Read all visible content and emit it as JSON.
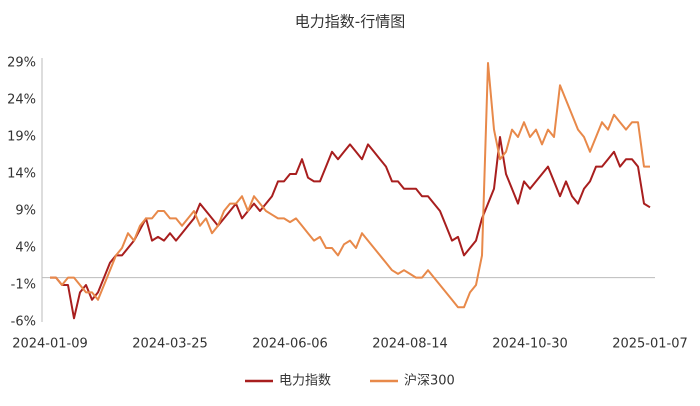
{
  "chart_data": {
    "type": "line",
    "title": "电力指数-行情图",
    "categories": [
      "2024-01-09",
      null,
      null,
      null,
      null,
      null,
      null,
      null,
      null,
      null,
      null,
      null,
      null,
      null,
      null,
      null,
      null,
      null,
      null,
      null,
      "2024-03-25",
      null,
      null,
      null,
      null,
      null,
      null,
      null,
      null,
      null,
      null,
      null,
      null,
      null,
      null,
      null,
      null,
      null,
      null,
      null,
      "2024-06-06",
      null,
      null,
      null,
      null,
      null,
      null,
      null,
      null,
      null,
      null,
      null,
      null,
      null,
      null,
      null,
      null,
      null,
      null,
      null,
      "2024-08-14",
      null,
      null,
      null,
      null,
      null,
      null,
      null,
      null,
      null,
      null,
      null,
      null,
      null,
      null,
      null,
      null,
      null,
      null,
      null,
      "2024-10-30",
      null,
      null,
      null,
      null,
      null,
      null,
      null,
      null,
      null,
      null,
      null,
      null,
      null,
      null,
      null,
      null,
      null,
      null,
      null,
      "2025-01-07"
    ],
    "series": [
      {
        "name": "电力指数",
        "color": "#a81e1e",
        "values": [
          0,
          0,
          -1,
          -1,
          -5.5,
          -2,
          -1,
          -3,
          -2,
          0,
          2,
          3,
          3,
          4,
          5,
          6.5,
          8,
          5,
          5.5,
          5,
          6,
          5,
          6,
          7,
          8,
          10,
          9,
          8,
          7,
          8,
          9,
          10,
          8,
          9,
          10,
          9,
          10,
          11,
          13,
          13,
          14,
          14,
          16,
          13.5,
          13,
          13,
          15,
          17,
          16,
          17,
          18,
          17,
          16,
          18,
          17,
          16,
          15,
          13,
          13,
          12,
          12,
          12,
          11,
          11,
          10,
          9,
          7,
          5,
          5.5,
          3,
          4,
          5,
          8,
          10,
          12,
          19,
          14,
          12,
          10,
          13,
          12,
          13,
          14,
          15,
          13,
          11,
          13,
          11,
          10,
          12,
          13,
          15,
          15,
          16,
          17,
          15,
          16,
          16,
          15,
          10,
          9.5
        ]
      },
      {
        "name": "沪深300",
        "color": "#e8894a",
        "values": [
          0,
          0,
          -1,
          0,
          0,
          -1,
          -2,
          -2,
          -3,
          -1,
          1,
          3,
          4,
          6,
          5,
          7,
          8,
          8,
          9,
          9,
          8,
          8,
          7,
          8,
          9,
          7,
          8,
          6,
          7,
          9,
          10,
          10,
          11,
          9,
          11,
          10,
          9,
          8.5,
          8,
          8,
          7.5,
          8,
          7,
          6,
          5,
          5.5,
          4,
          4,
          3,
          4.5,
          5,
          4,
          6,
          5,
          4,
          3,
          2,
          1,
          0.5,
          1,
          0.5,
          0,
          0,
          1,
          0,
          -1,
          -2,
          -3,
          -4,
          -4,
          -2,
          -1,
          3,
          29,
          20,
          16,
          17,
          20,
          19,
          21,
          19,
          20,
          18,
          20,
          19,
          26,
          24,
          22,
          20,
          19,
          17,
          19,
          21,
          20,
          22,
          21,
          20,
          21,
          21,
          15,
          15
        ]
      }
    ],
    "ylim": [
      -6,
      29
    ],
    "yticks": [
      {
        "value": -6,
        "label": "-6%"
      },
      {
        "value": -1,
        "label": "-1%"
      },
      {
        "value": 4,
        "label": "4%"
      },
      {
        "value": 9,
        "label": "9%"
      },
      {
        "value": 14,
        "label": "14%"
      },
      {
        "value": 19,
        "label": "19%"
      },
      {
        "value": 24,
        "label": "24%"
      },
      {
        "value": 29,
        "label": "29%"
      }
    ],
    "grid": false
  }
}
